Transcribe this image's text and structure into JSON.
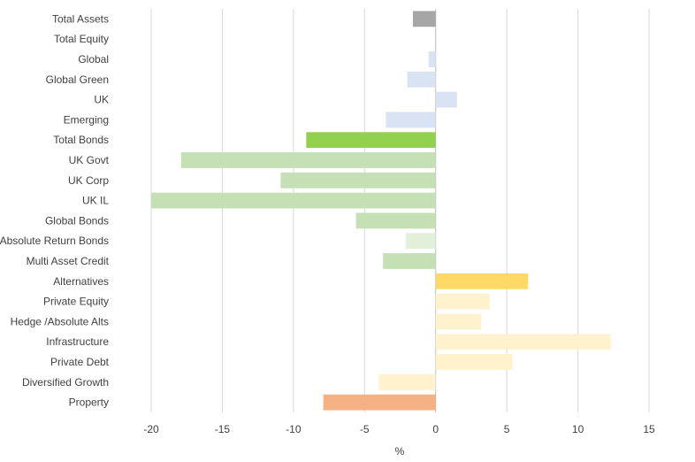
{
  "chart_data": {
    "type": "bar",
    "orientation": "horizontal",
    "title": "",
    "xlabel": "%",
    "ylabel": "",
    "xlim": [
      -20,
      15
    ],
    "xticks": [
      -20,
      -15,
      -10,
      -5,
      0,
      5,
      10,
      15
    ],
    "grid": "vertical",
    "legend": "none",
    "categories": [
      "Total Assets",
      "Total Equity",
      "Global",
      "Global Green",
      "UK",
      "Emerging",
      "Total Bonds",
      "UK Govt",
      "UK Corp",
      "UK IL",
      "Global Bonds",
      "Absolute Return Bonds",
      "Multi Asset Credit",
      "Alternatives",
      "Private Equity",
      "Hedge /Absolute Alts",
      "Infrastructure",
      "Private Debt",
      "Diversified Growth",
      "Property"
    ],
    "values": [
      -1.6,
      0.0,
      -0.5,
      -2.0,
      1.5,
      -3.5,
      -9.1,
      -17.9,
      -10.9,
      -20.0,
      -5.6,
      -2.1,
      -3.7,
      6.5,
      3.8,
      3.2,
      12.3,
      5.4,
      -4.0,
      -7.9
    ],
    "colors": [
      "#a6a6a6",
      "#b4c7e7",
      "#dae3f3",
      "#dae3f3",
      "#dae3f3",
      "#dae3f3",
      "#92d050",
      "#c5e0b4",
      "#c5e0b4",
      "#c5e0b4",
      "#c5e0b4",
      "#e2f0d9",
      "#c5e0b4",
      "#ffd966",
      "#fff2cc",
      "#fff2cc",
      "#fff2cc",
      "#fff2cc",
      "#fff2cc",
      "#f4b183"
    ]
  }
}
